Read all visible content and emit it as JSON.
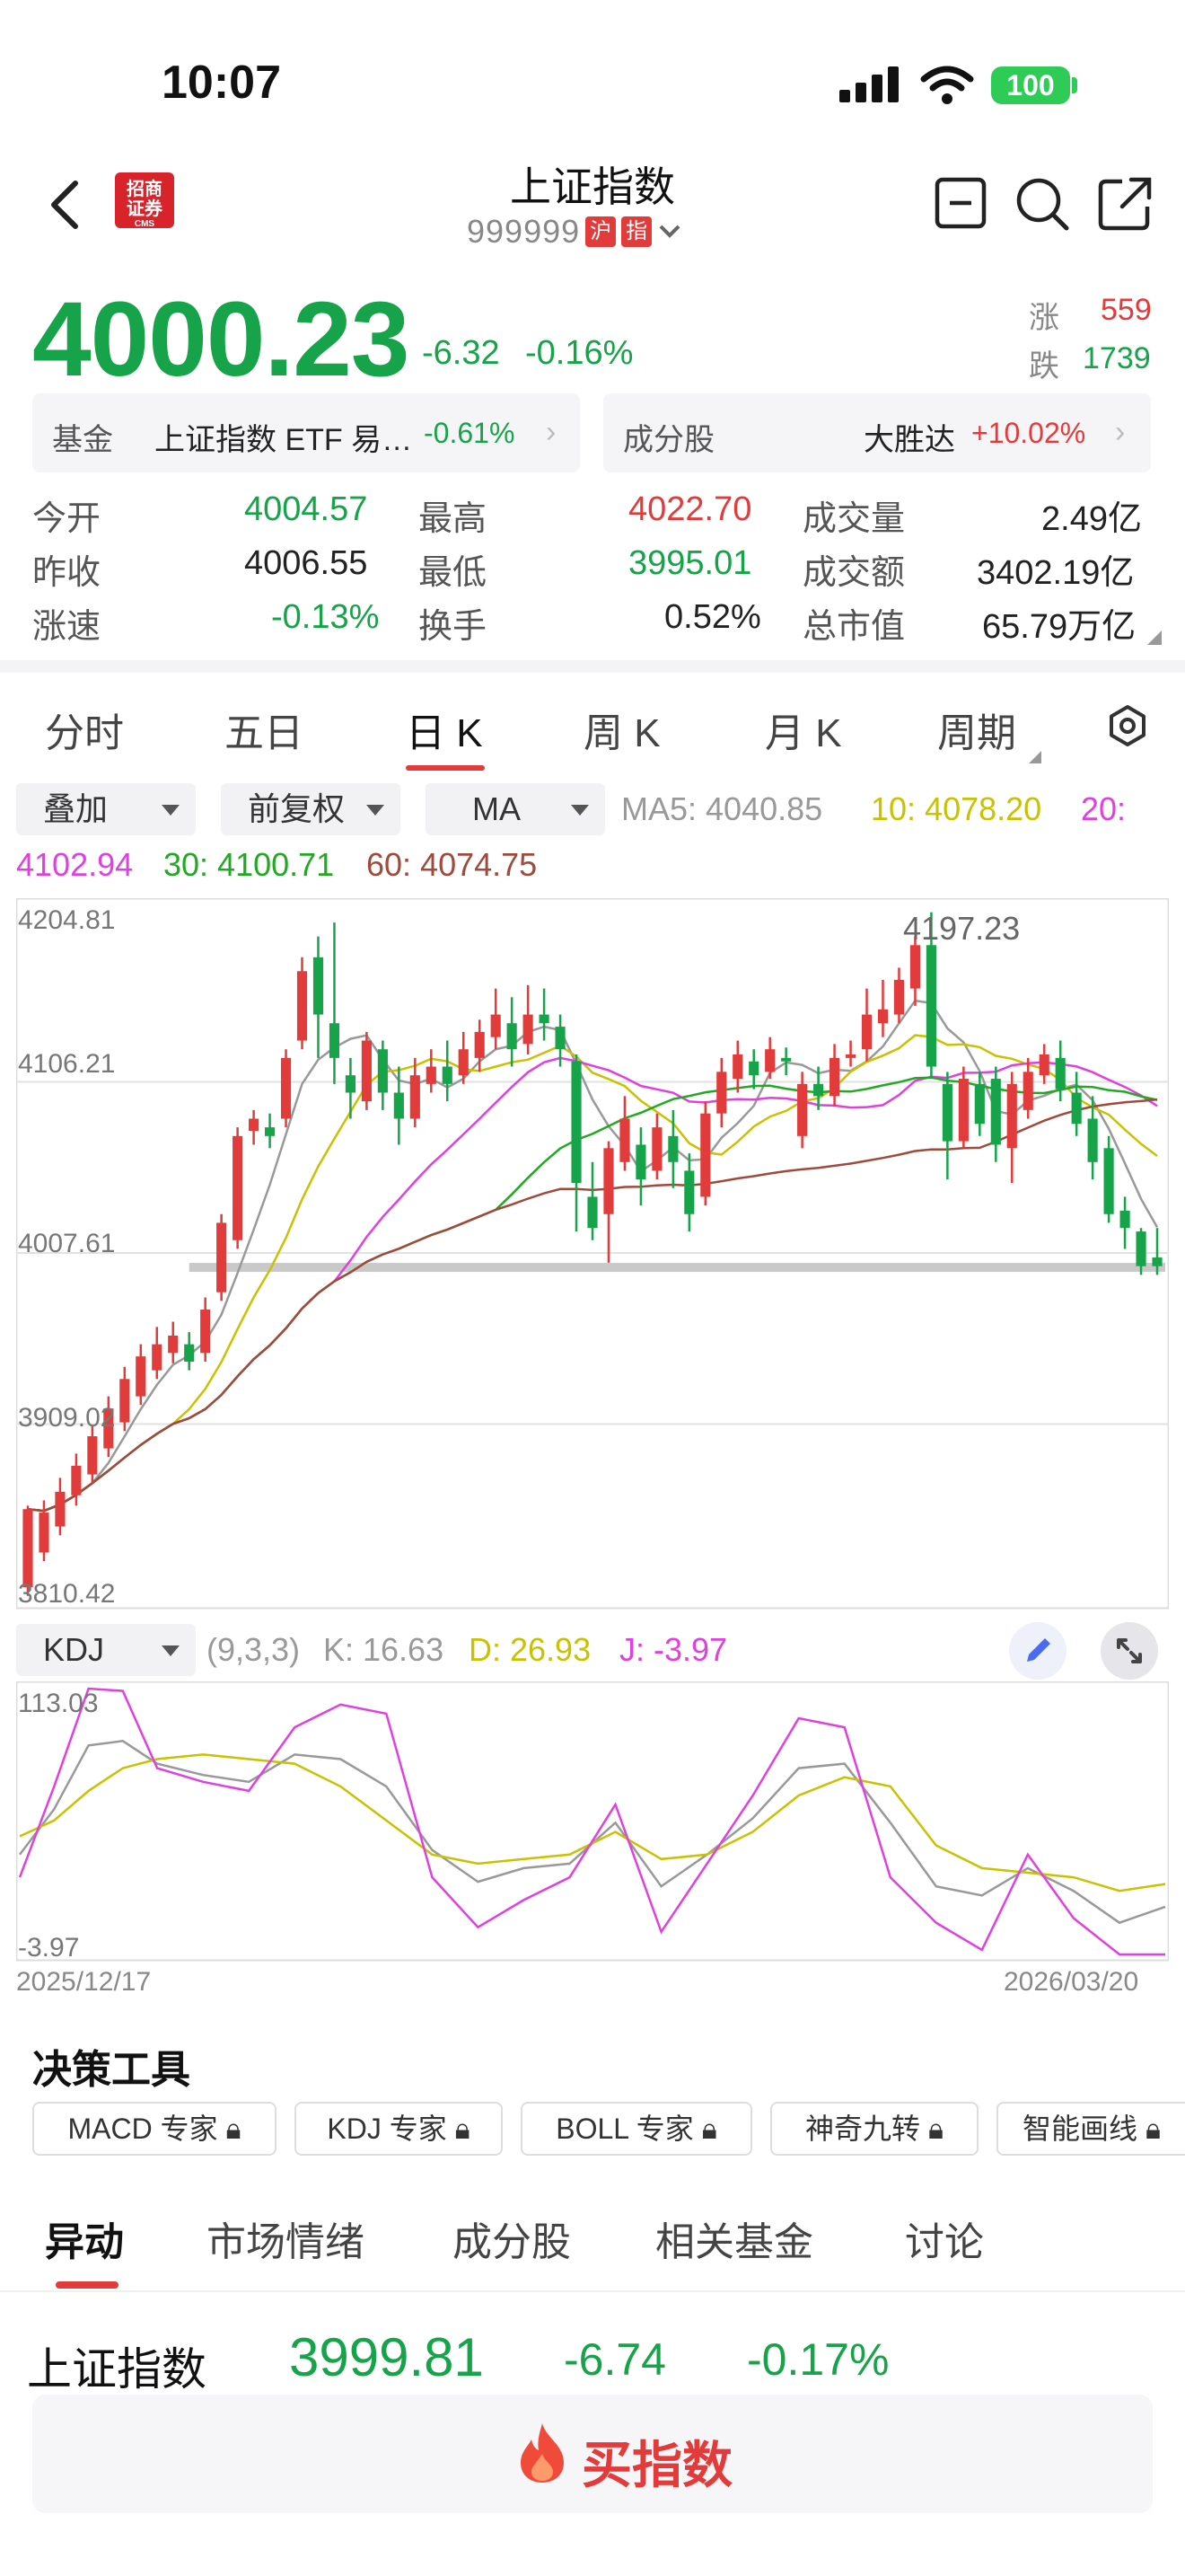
{
  "status": {
    "time": "10:07",
    "battery": "100"
  },
  "header": {
    "title": "上证指数",
    "code": "999999",
    "tag1": "沪",
    "tag2": "指",
    "logo_line1": "招商",
    "logo_line2": "证券",
    "logo_line3": "CMS"
  },
  "quote": {
    "price": "4000.23",
    "change": "-6.32",
    "change_pct": "-0.16%",
    "up_label": "涨",
    "up_count": "559",
    "down_label": "跌",
    "down_count": "1739"
  },
  "fund_card": {
    "label": "基金",
    "name": "上证指数 ETF 易…",
    "pct": "-0.61%"
  },
  "component_card": {
    "label": "成分股",
    "name": "大胜达",
    "pct": "+10.02%"
  },
  "stats": [
    {
      "label": "今开",
      "value": "4004.57"
    },
    {
      "label": "最高",
      "value": "4022.70"
    },
    {
      "label": "成交量",
      "value": "2.49亿"
    },
    {
      "label": "昨收",
      "value": "4006.55"
    },
    {
      "label": "最低",
      "value": "3995.01"
    },
    {
      "label": "成交额",
      "value": "3402.19亿"
    },
    {
      "label": "涨速",
      "value": "-0.13%"
    },
    {
      "label": "换手",
      "value": "0.52%"
    },
    {
      "label": "总市值",
      "value": "65.79万亿"
    }
  ],
  "tabs": [
    "分时",
    "五日",
    "日 K",
    "周 K",
    "月 K",
    "周期"
  ],
  "controls": {
    "overlay": "叠加",
    "adjust": "前复权",
    "indicator": "MA"
  },
  "ma": {
    "ma5": "MA5: 4040.85",
    "ma10": "10: 4078.20",
    "ma20_a": "20:",
    "ma20_b": "4102.94",
    "ma30": "30: 4100.71",
    "ma60": "60: 4074.75"
  },
  "colors": {
    "ma5": "#999999",
    "ma10": "#c8c200",
    "ma20": "#e040e0",
    "ma30": "#23a823",
    "ma60": "#a04a3c",
    "up": "#e23b3b",
    "down": "#17a34a"
  },
  "chart_data": [
    {
      "type": "candlestick",
      "y_ticks": [
        "4204.81",
        "4106.21",
        "4007.61",
        "3909.02",
        "3810.42"
      ],
      "ylim": [
        3810.42,
        4204.81
      ],
      "high_annotation": "4197.23",
      "x_start": "2025/12/17",
      "x_end": "2026/03/20",
      "candles": [
        [
          3815,
          3860,
          3810,
          3862
        ],
        [
          3835,
          3858,
          3830,
          3865
        ],
        [
          3850,
          3870,
          3845,
          3878
        ],
        [
          3868,
          3885,
          3862,
          3892
        ],
        [
          3880,
          3902,
          3875,
          3908
        ],
        [
          3895,
          3918,
          3890,
          3925
        ],
        [
          3910,
          3935,
          3905,
          3942
        ],
        [
          3925,
          3948,
          3920,
          3955
        ],
        [
          3940,
          3955,
          3935,
          3965
        ],
        [
          3950,
          3960,
          3944,
          3968
        ],
        [
          3955,
          3945,
          3940,
          3962
        ],
        [
          3950,
          3975,
          3945,
          3982
        ],
        [
          3985,
          4025,
          3980,
          4030
        ],
        [
          4015,
          4075,
          4010,
          4080
        ],
        [
          4078,
          4085,
          4070,
          4090
        ],
        [
          4080,
          4075,
          4068,
          4088
        ],
        [
          4085,
          4120,
          4080,
          4125
        ],
        [
          4130,
          4170,
          4125,
          4178
        ],
        [
          4178,
          4145,
          4120,
          4190
        ],
        [
          4140,
          4120,
          4105,
          4198
        ],
        [
          4110,
          4100,
          4085,
          4120
        ],
        [
          4095,
          4130,
          4090,
          4135
        ],
        [
          4125,
          4100,
          4090,
          4130
        ],
        [
          4100,
          4085,
          4070,
          4115
        ],
        [
          4085,
          4110,
          4080,
          4120
        ],
        [
          4105,
          4115,
          4100,
          4125
        ],
        [
          4115,
          4105,
          4095,
          4130
        ],
        [
          4110,
          4125,
          4105,
          4135
        ],
        [
          4120,
          4135,
          4112,
          4142
        ],
        [
          4132,
          4145,
          4125,
          4160
        ],
        [
          4140,
          4125,
          4115,
          4155
        ],
        [
          4128,
          4145,
          4122,
          4162
        ],
        [
          4145,
          4140,
          4130,
          4160
        ],
        [
          4138,
          4125,
          4115,
          4145
        ],
        [
          4118,
          4048,
          4020,
          4122
        ],
        [
          4040,
          4022,
          4015,
          4060
        ],
        [
          4030,
          4068,
          4002,
          4072
        ],
        [
          4060,
          4085,
          4055,
          4098
        ],
        [
          4070,
          4050,
          4035,
          4080
        ],
        [
          4055,
          4080,
          4050,
          4088
        ],
        [
          4075,
          4060,
          4045,
          4090
        ],
        [
          4055,
          4030,
          4020,
          4065
        ],
        [
          4040,
          4088,
          4035,
          4095
        ],
        [
          4088,
          4112,
          4080,
          4120
        ],
        [
          4108,
          4122,
          4100,
          4130
        ],
        [
          4118,
          4110,
          4102,
          4125
        ],
        [
          4112,
          4125,
          4108,
          4132
        ],
        [
          4120,
          4118,
          4110,
          4126
        ],
        [
          4075,
          4105,
          4068,
          4112
        ],
        [
          4105,
          4098,
          4090,
          4115
        ],
        [
          4098,
          4120,
          4092,
          4128
        ],
        [
          4120,
          4122,
          4115,
          4130
        ],
        [
          4125,
          4145,
          4118,
          4160
        ],
        [
          4140,
          4148,
          4132,
          4165
        ],
        [
          4145,
          4165,
          4140,
          4172
        ],
        [
          4160,
          4185,
          4150,
          4190
        ],
        [
          4185,
          4115,
          4108,
          4204
        ],
        [
          4105,
          4072,
          4050,
          4112
        ],
        [
          4072,
          4108,
          4068,
          4115
        ],
        [
          4105,
          4082,
          4075,
          4112
        ],
        [
          4108,
          4070,
          4060,
          4115
        ],
        [
          4068,
          4105,
          4048,
          4112
        ],
        [
          4090,
          4112,
          4085,
          4120
        ],
        [
          4110,
          4122,
          4105,
          4128
        ],
        [
          4120,
          4102,
          4095,
          4130
        ],
        [
          4100,
          4082,
          4075,
          4112
        ],
        [
          4085,
          4060,
          4050,
          4098
        ],
        [
          4068,
          4030,
          4025,
          4075
        ],
        [
          4032,
          4022,
          4010,
          4040
        ],
        [
          4020,
          4000,
          3995,
          4022
        ],
        [
          4005,
          4000,
          3995,
          4022
        ]
      ],
      "support_level": 3999.3
    },
    {
      "type": "line",
      "indicator": "KDJ",
      "params": "(9,3,3)",
      "k_label": "K: 16.63",
      "d_label": "D: 26.93",
      "j_label": "J: -3.97",
      "y_ticks": [
        "113.03",
        "-3.97"
      ],
      "ylim": [
        -3.97,
        113.03
      ],
      "x": [
        0,
        3,
        6,
        9,
        12,
        16,
        20,
        24,
        28,
        32,
        36,
        40,
        44,
        48,
        52,
        56,
        60,
        64,
        68,
        72,
        76,
        80,
        84,
        88,
        92,
        96,
        100
      ],
      "series": [
        {
          "name": "K",
          "values": [
            40,
            60,
            88,
            90,
            80,
            75,
            72,
            84,
            82,
            70,
            42,
            28,
            34,
            36,
            54,
            26,
            40,
            56,
            78,
            80,
            54,
            26,
            22,
            34,
            24,
            10,
            17
          ]
        },
        {
          "name": "D",
          "values": [
            48,
            55,
            68,
            78,
            82,
            84,
            82,
            80,
            70,
            55,
            40,
            36,
            38,
            40,
            50,
            38,
            40,
            50,
            66,
            74,
            70,
            44,
            34,
            32,
            30,
            24,
            27
          ]
        },
        {
          "name": "J",
          "values": [
            30,
            70,
            120,
            112,
            78,
            72,
            68,
            96,
            106,
            102,
            30,
            8,
            20,
            30,
            62,
            6,
            36,
            66,
            100,
            96,
            30,
            10,
            -2,
            40,
            12,
            -18,
            -4
          ]
        }
      ]
    }
  ],
  "kdj_ctrl": {
    "label": "KDJ"
  },
  "tools": {
    "title": "决策工具",
    "items": [
      "MACD 专家",
      "KDJ 专家",
      "BOLL 专家",
      "神奇九转",
      "智能画线"
    ]
  },
  "bottom_tabs": [
    "异动",
    "市场情绪",
    "成分股",
    "相关基金",
    "讨论"
  ],
  "ticker": {
    "name": "上证指数",
    "price": "3999.81",
    "change": "-6.74",
    "pct": "-0.17%"
  },
  "buy": {
    "label": "买指数"
  }
}
